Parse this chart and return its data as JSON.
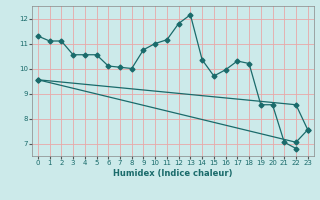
{
  "xlabel": "Humidex (Indice chaleur)",
  "bg_color": "#cceaea",
  "grid_color": "#e8a8a8",
  "line_color": "#1a6b6b",
  "xlim": [
    -0.5,
    23.5
  ],
  "ylim": [
    6.5,
    12.5
  ],
  "yticks": [
    7,
    8,
    9,
    10,
    11,
    12
  ],
  "xticks": [
    0,
    1,
    2,
    3,
    4,
    5,
    6,
    7,
    8,
    9,
    10,
    11,
    12,
    13,
    14,
    15,
    16,
    17,
    18,
    19,
    20,
    21,
    22,
    23
  ],
  "line1_x": [
    0,
    1,
    2,
    3,
    4,
    5,
    6,
    7,
    8,
    9,
    10,
    11,
    12,
    13,
    14,
    15,
    16,
    17,
    18,
    19,
    20,
    21,
    22
  ],
  "line1_y": [
    11.3,
    11.1,
    11.1,
    10.55,
    10.55,
    10.55,
    10.1,
    10.05,
    10.0,
    10.75,
    11.0,
    11.15,
    11.8,
    12.15,
    10.35,
    9.7,
    9.95,
    10.3,
    10.2,
    8.55,
    8.55,
    7.05,
    6.8
  ],
  "line2_x": [
    0,
    22,
    23
  ],
  "line2_y": [
    9.55,
    8.55,
    7.55
  ],
  "line3_x": [
    0,
    22,
    23
  ],
  "line3_y": [
    9.55,
    7.05,
    7.55
  ]
}
